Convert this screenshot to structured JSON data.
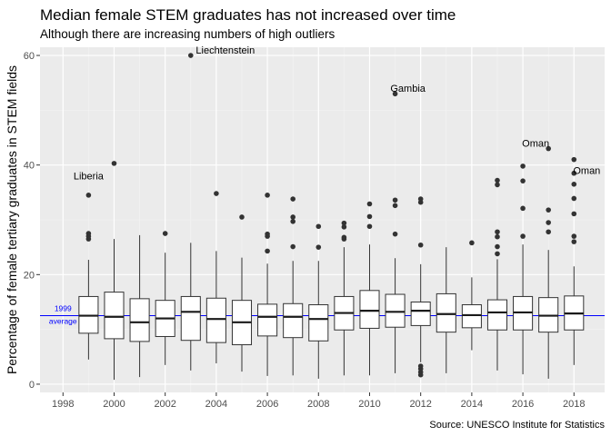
{
  "chart_data": {
    "type": "boxplot",
    "title": "Median female STEM graduates has not increased over time",
    "subtitle": "Although there are increasing numbers of high outliers",
    "caption": "Source: UNESCO Institute for Statistics",
    "xlabel": "",
    "ylabel": "Percentage of female tertiary graduates in STEM fields",
    "xlim": [
      1997.1,
      2019.2
    ],
    "ylim": [
      -1.5,
      61.5
    ],
    "x_ticks": [
      1998,
      2000,
      2002,
      2004,
      2006,
      2008,
      2010,
      2012,
      2014,
      2016,
      2018
    ],
    "y_ticks": [
      0,
      20,
      40,
      60
    ],
    "grid": true,
    "panel_background": "#ebebeb",
    "box_fill": "#ffffff",
    "reference_line": {
      "value": 12.5,
      "color": "#0000ff",
      "label_line1": "1999",
      "label_line2": "average"
    },
    "boxes": [
      {
        "year": 1999,
        "whisker_low": 4.5,
        "q1": 9.3,
        "median": 12.5,
        "q3": 16.0,
        "whisker_high": 22.7,
        "outliers": [
          26.5,
          27.0,
          27.5,
          34.5
        ]
      },
      {
        "year": 2000,
        "whisker_low": 0.8,
        "q1": 8.3,
        "median": 12.3,
        "q3": 16.8,
        "whisker_high": 26.5,
        "outliers": [
          40.3
        ]
      },
      {
        "year": 2001,
        "whisker_low": 1.3,
        "q1": 7.8,
        "median": 11.3,
        "q3": 15.6,
        "whisker_high": 27.2,
        "outliers": []
      },
      {
        "year": 2002,
        "whisker_low": 3.5,
        "q1": 8.7,
        "median": 12.0,
        "q3": 15.3,
        "whisker_high": 24.0,
        "outliers": [
          27.5
        ]
      },
      {
        "year": 2003,
        "whisker_low": 2.5,
        "q1": 8.0,
        "median": 13.2,
        "q3": 16.0,
        "whisker_high": 25.8,
        "outliers": [
          60.0
        ]
      },
      {
        "year": 2004,
        "whisker_low": 3.8,
        "q1": 7.6,
        "median": 11.9,
        "q3": 15.7,
        "whisker_high": 24.3,
        "outliers": [
          34.8
        ]
      },
      {
        "year": 2005,
        "whisker_low": 2.3,
        "q1": 7.2,
        "median": 11.3,
        "q3": 15.3,
        "whisker_high": 23.1,
        "outliers": [
          30.5
        ]
      },
      {
        "year": 2006,
        "whisker_low": 1.5,
        "q1": 8.8,
        "median": 12.3,
        "q3": 14.6,
        "whisker_high": 22.0,
        "outliers": [
          24.3,
          27.0,
          27.4,
          34.5
        ]
      },
      {
        "year": 2007,
        "whisker_low": 1.6,
        "q1": 8.5,
        "median": 12.3,
        "q3": 14.7,
        "whisker_high": 22.5,
        "outliers": [
          25.1,
          29.7,
          30.5,
          33.8
        ]
      },
      {
        "year": 2008,
        "whisker_low": 1.0,
        "q1": 7.9,
        "median": 11.9,
        "q3": 14.5,
        "whisker_high": 22.5,
        "outliers": [
          25.0,
          28.8
        ]
      },
      {
        "year": 2009,
        "whisker_low": 1.6,
        "q1": 9.9,
        "median": 13.0,
        "q3": 16.0,
        "whisker_high": 25.0,
        "outliers": [
          26.5,
          26.8,
          28.7,
          29.4
        ]
      },
      {
        "year": 2010,
        "whisker_low": 1.6,
        "q1": 10.2,
        "median": 13.4,
        "q3": 17.1,
        "whisker_high": 25.5,
        "outliers": [
          28.8,
          30.6,
          32.9
        ]
      },
      {
        "year": 2011,
        "whisker_low": 2.0,
        "q1": 10.4,
        "median": 13.2,
        "q3": 16.4,
        "whisker_high": 23.0,
        "outliers": [
          27.4,
          32.6,
          33.6,
          53.0
        ]
      },
      {
        "year": 2012,
        "whisker_low": 4.0,
        "q1": 10.7,
        "median": 13.4,
        "q3": 15.0,
        "whisker_high": 21.9,
        "outliers": [
          1.7,
          2.2,
          2.8,
          3.3,
          25.4,
          33.2,
          33.8
        ]
      },
      {
        "year": 2013,
        "whisker_low": 2.0,
        "q1": 9.5,
        "median": 12.8,
        "q3": 16.5,
        "whisker_high": 25.0,
        "outliers": []
      },
      {
        "year": 2014,
        "whisker_low": 6.2,
        "q1": 10.3,
        "median": 12.6,
        "q3": 14.5,
        "whisker_high": 19.5,
        "outliers": [
          25.8
        ]
      },
      {
        "year": 2015,
        "whisker_low": 2.5,
        "q1": 9.9,
        "median": 13.1,
        "q3": 15.4,
        "whisker_high": 22.8,
        "outliers": [
          23.8,
          25.1,
          26.9,
          27.8,
          36.4,
          37.2
        ]
      },
      {
        "year": 2016,
        "whisker_low": 1.8,
        "q1": 9.9,
        "median": 13.1,
        "q3": 16.0,
        "whisker_high": 25.5,
        "outliers": [
          27.0,
          32.1,
          37.1,
          39.8
        ]
      },
      {
        "year": 2017,
        "whisker_low": 1.0,
        "q1": 9.5,
        "median": 12.5,
        "q3": 15.8,
        "whisker_high": 24.5,
        "outliers": [
          27.8,
          29.5,
          31.8,
          43.0
        ]
      },
      {
        "year": 2018,
        "whisker_low": 3.5,
        "q1": 9.9,
        "median": 12.9,
        "q3": 16.1,
        "whisker_high": 21.5,
        "outliers": [
          26.0,
          27.0,
          31.1,
          33.9,
          36.5,
          38.5,
          41.0
        ]
      }
    ],
    "annotations": [
      {
        "text": "Liberia",
        "x": 1999,
        "y": 38.0,
        "anchor": "middle"
      },
      {
        "text": "Liechtenstein",
        "x": 2003.2,
        "y": 61.0,
        "anchor": "start"
      },
      {
        "text": "Gambia",
        "x": 2011.5,
        "y": 54.0,
        "anchor": "middle"
      },
      {
        "text": "Oman",
        "x": 2016.5,
        "y": 44.0,
        "anchor": "middle"
      },
      {
        "text": "Oman",
        "x": 2018.5,
        "y": 39.0,
        "anchor": "middle"
      }
    ]
  }
}
